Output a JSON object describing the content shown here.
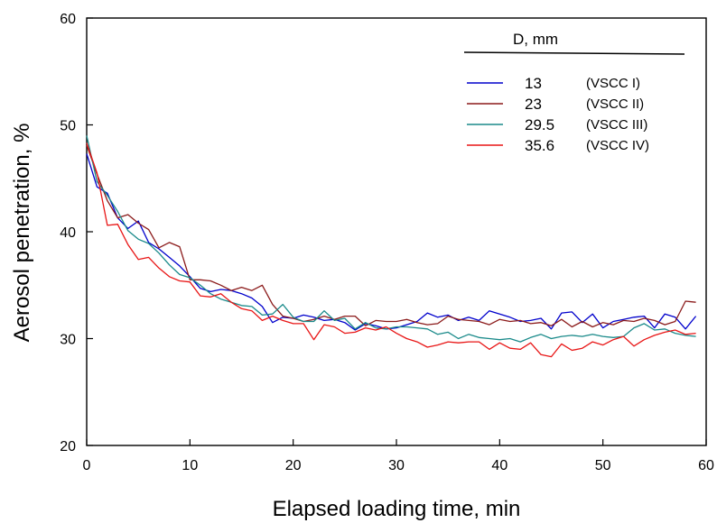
{
  "chart_data": {
    "type": "line",
    "xlabel": "Elapsed loading time, min",
    "ylabel": "Aerosol penetration, %",
    "xlim": [
      0,
      60
    ],
    "ylim": [
      20,
      60
    ],
    "xticks": [
      0,
      10,
      20,
      30,
      40,
      50,
      60
    ],
    "yticks": [
      20,
      30,
      40,
      50,
      60
    ],
    "grid": false,
    "legend": {
      "placement": "top-right",
      "title": "D, mm",
      "entries": [
        {
          "label": "13",
          "sub": "(VSCC I)"
        },
        {
          "label": "23",
          "sub": "(VSCC II)"
        },
        {
          "label": "29.5",
          "sub": "(VSCC III)"
        },
        {
          "label": "35.6",
          "sub": "(VSCC IV)"
        }
      ]
    },
    "series": [
      {
        "name": "13",
        "color": "#0000cc",
        "x": [
          0,
          1,
          2,
          3,
          4,
          5,
          6,
          7,
          8,
          9,
          10,
          11,
          12,
          13,
          14,
          15,
          16,
          17,
          18,
          19,
          20,
          21,
          22,
          23,
          24,
          25,
          26,
          27,
          28,
          29,
          30,
          31,
          32,
          33,
          34,
          35,
          36,
          37,
          38,
          39,
          40,
          41,
          42,
          43,
          44,
          45,
          46,
          47,
          48,
          49,
          50,
          51,
          52,
          53,
          54,
          55,
          56,
          57,
          58,
          59
        ],
        "values": [
          47.3,
          44.2,
          43.6,
          41.3,
          40.3,
          41.0,
          39.0,
          38.4,
          37.6,
          36.8,
          35.8,
          34.7,
          34.4,
          34.6,
          34.5,
          34.2,
          33.8,
          33.0,
          31.5,
          32.0,
          31.9,
          32.2,
          32.0,
          31.7,
          31.8,
          31.5,
          30.8,
          31.4,
          31.2,
          30.9,
          31.0,
          31.3,
          31.6,
          32.4,
          32.0,
          32.2,
          31.7,
          32.0,
          31.7,
          32.6,
          32.3,
          32.0,
          31.6,
          31.7,
          31.9,
          30.9,
          32.4,
          32.5,
          31.5,
          32.3,
          31.0,
          31.6,
          31.8,
          32.0,
          32.1,
          31.0,
          32.3,
          32.0,
          30.9,
          32.1
        ]
      },
      {
        "name": "23",
        "color": "#8b1a1a",
        "x": [
          0,
          1,
          2,
          3,
          4,
          5,
          6,
          7,
          8,
          9,
          10,
          11,
          12,
          13,
          14,
          15,
          16,
          17,
          18,
          19,
          20,
          21,
          22,
          23,
          24,
          25,
          26,
          27,
          28,
          29,
          30,
          31,
          32,
          33,
          34,
          35,
          36,
          37,
          38,
          39,
          40,
          41,
          42,
          43,
          44,
          45,
          46,
          47,
          48,
          49,
          50,
          51,
          52,
          53,
          54,
          55,
          56,
          57,
          58,
          59
        ],
        "values": [
          48.1,
          45.4,
          42.9,
          41.3,
          41.6,
          40.8,
          40.2,
          38.5,
          39.0,
          38.6,
          35.5,
          35.5,
          35.4,
          35.0,
          34.5,
          34.8,
          34.5,
          35.0,
          33.2,
          32.1,
          31.9,
          31.6,
          31.8,
          32.1,
          31.8,
          32.1,
          32.1,
          31.2,
          31.7,
          31.6,
          31.6,
          31.8,
          31.5,
          31.3,
          31.4,
          32.1,
          31.8,
          31.7,
          31.6,
          31.3,
          31.8,
          31.6,
          31.7,
          31.4,
          31.5,
          31.2,
          31.8,
          31.1,
          31.6,
          31.1,
          31.5,
          31.3,
          31.7,
          31.6,
          31.9,
          31.7,
          31.3,
          31.6,
          33.5,
          33.4
        ]
      },
      {
        "name": "29.5",
        "color": "#1a8a8a",
        "x": [
          0,
          1,
          2,
          3,
          4,
          5,
          6,
          7,
          8,
          9,
          10,
          11,
          12,
          13,
          14,
          15,
          16,
          17,
          18,
          19,
          20,
          21,
          22,
          23,
          24,
          25,
          26,
          27,
          28,
          29,
          30,
          31,
          32,
          33,
          34,
          35,
          36,
          37,
          38,
          39,
          40,
          41,
          42,
          43,
          44,
          45,
          46,
          47,
          48,
          49,
          50,
          51,
          52,
          53,
          54,
          55,
          56,
          57,
          58,
          59
        ],
        "values": [
          49.0,
          44.7,
          43.4,
          41.9,
          40.1,
          39.3,
          38.9,
          38.0,
          36.9,
          36.0,
          35.7,
          35.0,
          34.2,
          33.7,
          33.4,
          33.1,
          33.0,
          32.2,
          32.3,
          33.2,
          32.0,
          31.6,
          31.6,
          32.6,
          31.7,
          31.9,
          30.9,
          31.5,
          31.0,
          30.9,
          31.1,
          31.1,
          31.0,
          30.9,
          30.4,
          30.6,
          30.0,
          30.4,
          30.1,
          30.0,
          29.9,
          30.0,
          29.7,
          30.1,
          30.4,
          30.0,
          30.2,
          30.3,
          30.2,
          30.4,
          30.2,
          30.1,
          30.2,
          31.0,
          31.4,
          30.8,
          30.9,
          30.5,
          30.3,
          30.2
        ]
      },
      {
        "name": "35.6",
        "color": "#e81515",
        "x": [
          0,
          1,
          2,
          3,
          4,
          5,
          6,
          7,
          8,
          9,
          10,
          11,
          12,
          13,
          14,
          15,
          16,
          17,
          18,
          19,
          20,
          21,
          22,
          23,
          24,
          25,
          26,
          27,
          28,
          29,
          30,
          31,
          32,
          33,
          34,
          35,
          36,
          37,
          38,
          39,
          40,
          41,
          42,
          43,
          44,
          45,
          46,
          47,
          48,
          49,
          50,
          51,
          52,
          53,
          54,
          55,
          56,
          57,
          58,
          59
        ],
        "values": [
          48.3,
          45.5,
          40.6,
          40.7,
          38.8,
          37.4,
          37.6,
          36.6,
          35.8,
          35.4,
          35.3,
          34.0,
          33.9,
          34.2,
          33.4,
          32.8,
          32.6,
          31.7,
          32.1,
          31.7,
          31.4,
          31.4,
          29.9,
          31.3,
          31.1,
          30.5,
          30.6,
          31.0,
          30.8,
          31.1,
          30.5,
          30.0,
          29.7,
          29.2,
          29.4,
          29.7,
          29.6,
          29.7,
          29.7,
          29.0,
          29.6,
          29.1,
          29.0,
          29.6,
          28.5,
          28.3,
          29.5,
          28.9,
          29.1,
          29.7,
          29.4,
          29.9,
          30.2,
          29.3,
          29.9,
          30.3,
          30.6,
          30.8,
          30.4,
          30.5
        ]
      }
    ]
  }
}
